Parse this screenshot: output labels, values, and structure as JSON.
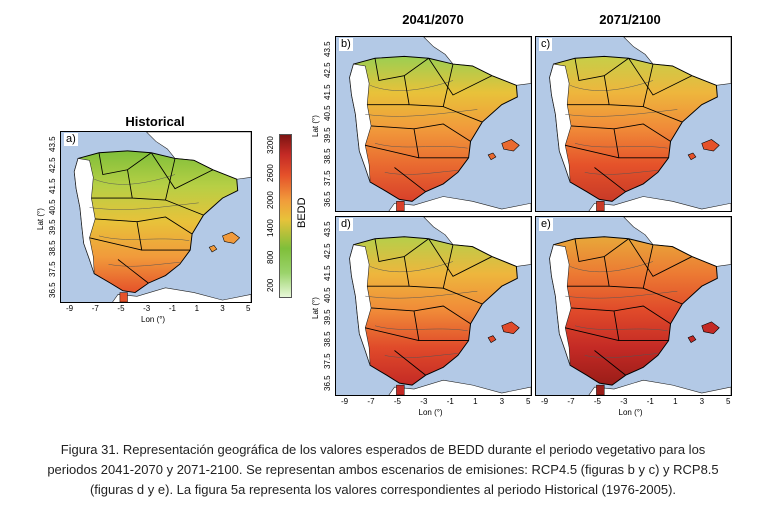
{
  "columns": {
    "left": "2041/2070",
    "right": "2071/2100"
  },
  "historical_title": "Historical",
  "panels": [
    {
      "id": "a",
      "label": "a)"
    },
    {
      "id": "b",
      "label": "b)"
    },
    {
      "id": "c",
      "label": "c)"
    },
    {
      "id": "d",
      "label": "d)"
    },
    {
      "id": "e",
      "label": "e)"
    }
  ],
  "axes": {
    "xlabel": "Lon (°)",
    "ylabel": "Lat (°)",
    "x_ticks": [
      "-9",
      "-7",
      "-5",
      "-3",
      "-1",
      "1",
      "3",
      "5"
    ],
    "y_ticks": [
      "36.5",
      "37.5",
      "38.5",
      "39.5",
      "40.5",
      "41.5",
      "42.5",
      "43.5"
    ]
  },
  "colorbar": {
    "label": "BEDD",
    "ticks": [
      "200",
      "800",
      "1400",
      "2000",
      "2600",
      "3200"
    ],
    "colors": [
      "#e8f8d8",
      "#7fbf3a",
      "#e8c23a",
      "#f19a3b",
      "#e5522a",
      "#c42a25",
      "#7d1412"
    ]
  },
  "colors": {
    "sea": "#b3c9e6",
    "land_outside": "#ffffff",
    "region_border": "#000000"
  },
  "caption": [
    "Figura 31. Representación geográfica de los valores esperados de BEDD durante el periodo vegetativo para los",
    "periodos 2041-2070 y 2071-2100. Se representan ambos escenarios de emisiones: RCP4.5 (figuras b y c) y RCP8.5",
    "(figuras d y e). La figura 5a representa los valores correspondientes al periodo Historical (1976-2005)."
  ]
}
